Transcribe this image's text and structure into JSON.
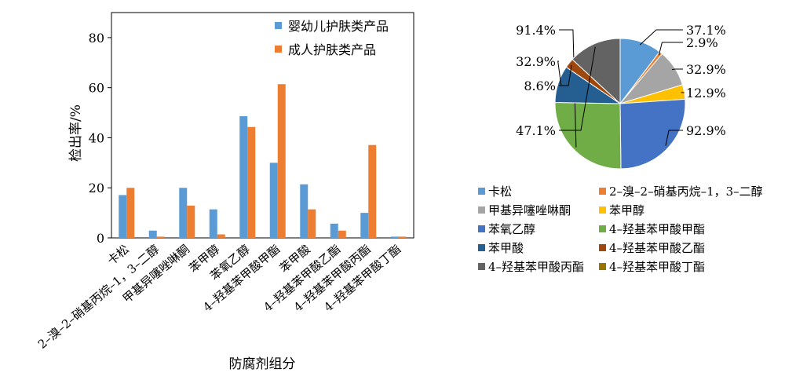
{
  "chart_data": [
    {
      "type": "bar",
      "xlabel": "防腐剂组分",
      "ylabel": "检出率/%",
      "ylim": [
        0,
        90
      ],
      "yticks": [
        0,
        20,
        40,
        60,
        80
      ],
      "legend_position": "top-right",
      "categories": [
        "卡松",
        "2–溴–2–硝基丙烷–1，3–二醇",
        "甲基异噻唑啉酮",
        "苯甲醇",
        "苯氧乙醇",
        "4–羟基苯甲酸甲酯",
        "苯甲酸",
        "4–羟基苯甲酸乙酯",
        "4–羟基苯甲酸丙酯",
        "4–羟基苯甲酸丁酯"
      ],
      "series": [
        {
          "name": "婴幼儿护肤类产品",
          "color": "#5B9BD5",
          "values": [
            17.1,
            2.9,
            20.0,
            11.4,
            48.6,
            30.0,
            21.4,
            5.7,
            10.0,
            0.5
          ]
        },
        {
          "name": "成人护肤类产品",
          "color": "#ED7D31",
          "values": [
            20.0,
            0.5,
            12.9,
            1.4,
            44.3,
            61.4,
            11.4,
            2.9,
            37.1,
            0.5
          ]
        }
      ]
    },
    {
      "type": "pie",
      "legend_position": "bottom",
      "slices": [
        {
          "label": "卡松",
          "value": 37.1,
          "value_label": "37.1%",
          "color": "#5B9BD5"
        },
        {
          "label": "2–溴–2–硝基丙烷–1，3–二醇",
          "value": 2.9,
          "value_label": "2.9%",
          "color": "#ED7D31"
        },
        {
          "label": "甲基异噻唑啉酮",
          "value": 32.9,
          "value_label": "32.9%",
          "color": "#A5A5A5"
        },
        {
          "label": "苯甲醇",
          "value": 12.9,
          "value_label": "12.9%",
          "color": "#FFC000"
        },
        {
          "label": "苯氧乙醇",
          "value": 92.9,
          "value_label": "92.9%",
          "color": "#4472C4"
        },
        {
          "label": "4–羟基苯甲酸甲酯",
          "value": 91.4,
          "value_label": "91.4%",
          "color": "#70AD47"
        },
        {
          "label": "苯甲酸",
          "value": 32.9,
          "value_label": "32.9%",
          "color": "#255E91"
        },
        {
          "label": "4–羟基苯甲酸乙酯",
          "value": 8.6,
          "value_label": "8.6%",
          "color": "#9E480E"
        },
        {
          "label": "4–羟基苯甲酸丙酯",
          "value": 47.1,
          "value_label": "47.1%",
          "color": "#636363"
        },
        {
          "label": "4–羟基苯甲酸丁酯",
          "value": 0,
          "value_label": "0",
          "color": "#997300"
        }
      ]
    }
  ]
}
